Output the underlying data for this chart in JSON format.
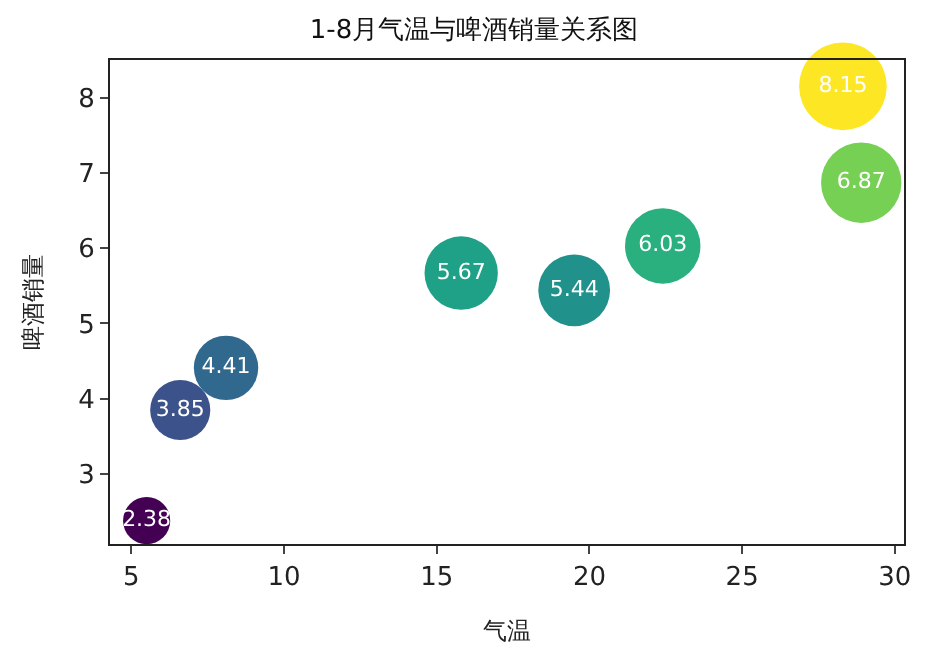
{
  "chart_data": {
    "type": "bubble",
    "title": "1-8月气温与啤酒销量关系图",
    "xlabel": "气温",
    "ylabel": "啤酒销量",
    "x": [
      5.5,
      6.6,
      8.1,
      15.8,
      19.5,
      22.4,
      28.3,
      28.9
    ],
    "values": [
      2.38,
      3.85,
      4.41,
      5.67,
      5.44,
      6.03,
      8.15,
      6.87
    ],
    "sizes": [
      0.29,
      0.47,
      0.54,
      0.7,
      0.67,
      0.74,
      1,
      0.84
    ],
    "colors": [
      "#440154",
      "#3b528b",
      "#31688e",
      "#1fa187",
      "#21918c",
      "#2ab07f",
      "#fde725",
      "#75d054"
    ],
    "data_labels": true,
    "xlim": [
      4.3,
      30.3
    ],
    "xticks": [
      5,
      10,
      15,
      20,
      25,
      30
    ],
    "ylim": [
      2.07,
      8.5
    ],
    "yticks": [
      3,
      4,
      5,
      6,
      7,
      8
    ]
  }
}
